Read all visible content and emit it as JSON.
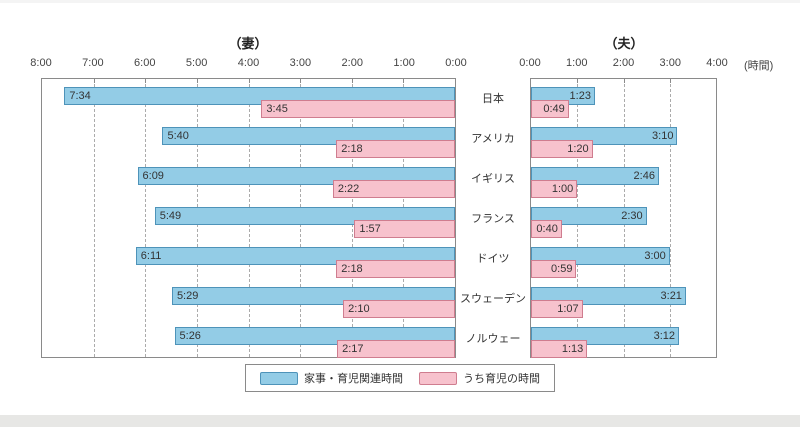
{
  "page": {
    "top_strip_color": "#f4f4f4",
    "bottom_strip_color": "#e7e7e5"
  },
  "chart_data": {
    "type": "bar",
    "orientation": "horizontal, mirrored dual-panel (wife left / husband right)",
    "left_panel_title": "（妻）",
    "right_panel_title": "（夫）",
    "unit_label": "(時間)",
    "left_axis_ticks": [
      "8:00",
      "7:00",
      "6:00",
      "5:00",
      "4:00",
      "3:00",
      "2:00",
      "1:00",
      "0:00"
    ],
    "right_axis_ticks": [
      "0:00",
      "1:00",
      "2:00",
      "3:00",
      "4:00"
    ],
    "left_axis_max_hours": 8,
    "right_axis_max_hours": 4,
    "grid": "dashed vertical lines at each hour",
    "rows": [
      {
        "country": "日本",
        "wife_total": "7:34",
        "wife_childcare": "3:45",
        "husband_total": "1:23",
        "husband_childcare": "0:49"
      },
      {
        "country": "アメリカ",
        "wife_total": "5:40",
        "wife_childcare": "2:18",
        "husband_total": "3:10",
        "husband_childcare": "1:20"
      },
      {
        "country": "イギリス",
        "wife_total": "6:09",
        "wife_childcare": "2:22",
        "husband_total": "2:46",
        "husband_childcare": "1:00"
      },
      {
        "country": "フランス",
        "wife_total": "5:49",
        "wife_childcare": "1:57",
        "husband_total": "2:30",
        "husband_childcare": "0:40"
      },
      {
        "country": "ドイツ",
        "wife_total": "6:11",
        "wife_childcare": "2:18",
        "husband_total": "3:00",
        "husband_childcare": "0:59"
      },
      {
        "country": "スウェーデン",
        "wife_total": "5:29",
        "wife_childcare": "2:10",
        "husband_total": "3:21",
        "husband_childcare": "1:07"
      },
      {
        "country": "ノルウェー",
        "wife_total": "5:26",
        "wife_childcare": "2:17",
        "husband_total": "3:12",
        "husband_childcare": "1:13"
      }
    ],
    "legend": [
      {
        "label": "家事・育児関連時間",
        "color": "#93cce6",
        "border": "#4e93b9"
      },
      {
        "label": "うち育児の時間",
        "color": "#f7c2cd",
        "border": "#cf7d8f"
      }
    ],
    "colors": {
      "total_fill": "#93cce6",
      "total_border": "#4e93b9",
      "childcare_fill": "#f7c2cd",
      "childcare_border": "#cf7d8f",
      "panel_border": "#8a8a8a",
      "gridline": "#ababab",
      "text": "#333333"
    }
  }
}
